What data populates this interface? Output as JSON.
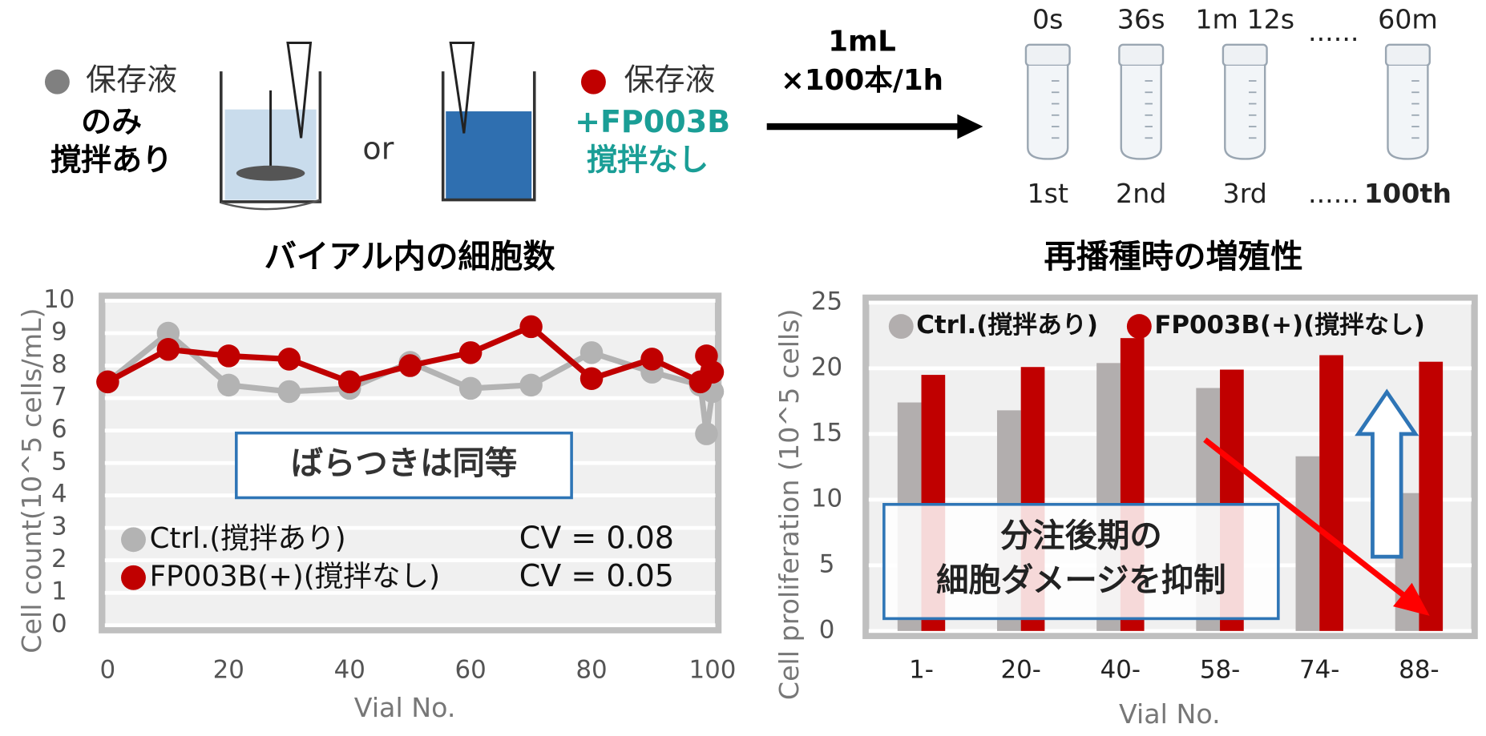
{
  "diagram": {
    "left": [
      "保存液",
      "のみ",
      "撹拌あり"
    ],
    "or": "or",
    "right": [
      "保存液",
      "+FP003B",
      "撹拌なし"
    ],
    "transfer": [
      "1mL",
      "×100本/1h"
    ],
    "times": [
      "0s",
      "36s",
      "1m 12s",
      "......",
      "60m"
    ],
    "order": [
      "1st",
      "2nd",
      "3rd",
      "......",
      "100th"
    ]
  },
  "chart_data": [
    {
      "type": "line",
      "title": "バイアル内の細胞数",
      "x_label": "Vial No.",
      "y_label": "Cell count(10^5 cells/mL)",
      "x": [
        0,
        10,
        20,
        30,
        40,
        50,
        60,
        70,
        80,
        90,
        98,
        99,
        100
      ],
      "series": [
        {
          "name": "Ctrl.(撹拌あり)",
          "color": "#b3b3b3",
          "values": [
            7.5,
            9.0,
            7.4,
            7.2,
            7.3,
            8.1,
            7.3,
            7.4,
            8.4,
            7.8,
            7.4,
            5.9,
            7.2
          ]
        },
        {
          "name": "FP003B(+)(撹拌なし)",
          "color": "#c00000",
          "values": [
            7.5,
            8.5,
            8.3,
            8.2,
            7.5,
            8.0,
            8.4,
            9.2,
            7.6,
            8.2,
            7.5,
            8.3,
            7.8
          ]
        }
      ],
      "xlim": [
        0,
        100
      ],
      "xticks": [
        0,
        20,
        40,
        60,
        80,
        100
      ],
      "ylim": [
        0,
        10
      ],
      "yticks": [
        0,
        1,
        2,
        3,
        4,
        5,
        6,
        7,
        8,
        9,
        10
      ],
      "grid": true,
      "annotations": [
        "ばらつきは同等",
        "CV = 0.08",
        "CV = 0.05"
      ]
    },
    {
      "type": "bar",
      "title": "再播種時の増殖性",
      "x_label": "Vial No.",
      "y_label": "Cell proliferation (10^5 cells)",
      "categories": [
        "1-",
        "20-",
        "40-",
        "58-",
        "74-",
        "88-"
      ],
      "series": [
        {
          "name": "Ctrl.(撹拌あり)",
          "color": "#b2aeae",
          "values": [
            17.4,
            16.8,
            20.4,
            18.5,
            13.3,
            10.5
          ]
        },
        {
          "name": "FP003B(+)(撹拌なし)",
          "color": "#c00000",
          "values": [
            19.5,
            20.1,
            22.3,
            19.9,
            21.0,
            20.5
          ]
        }
      ],
      "ylim": [
        0,
        25
      ],
      "yticks": [
        0,
        5,
        10,
        15,
        20,
        25
      ],
      "grid": true,
      "annotations": [
        "分注後期の",
        "細胞ダメージを抑制"
      ]
    }
  ]
}
